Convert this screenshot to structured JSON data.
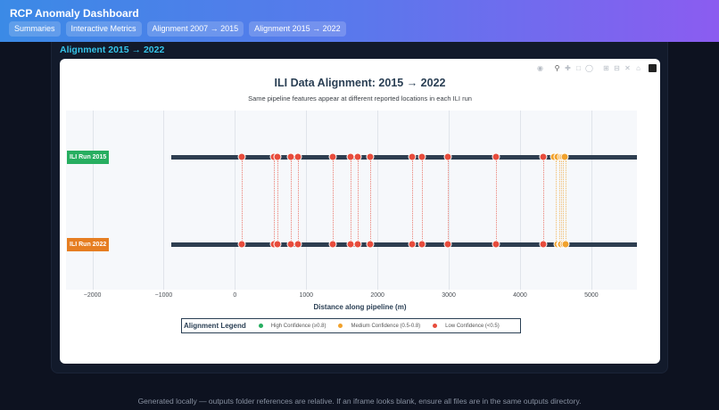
{
  "header": {
    "title": "RCP Anomaly Dashboard",
    "tabs": [
      {
        "label": "Summaries"
      },
      {
        "label": "Interactive Metrics"
      },
      {
        "label": "Alignment 2007 → 2015"
      },
      {
        "label": "Alignment 2015 → 2022"
      }
    ]
  },
  "section": {
    "title": "Alignment 2015 → 2022"
  },
  "modebar": {
    "icons": [
      "camera-icon",
      "zoom-icon",
      "pan-icon",
      "box-select-icon",
      "lasso-icon",
      "zoom-in-icon",
      "zoom-out-icon",
      "autoscale-icon",
      "reset-axes-icon",
      "plotly-logo-icon"
    ]
  },
  "chart_data": {
    "type": "scatter",
    "title": "ILI Data Alignment: 2015 → 2022",
    "subtitle": "Same pipeline features appear at different reported locations in each ILI run",
    "xlabel": "Distance along pipeline (m)",
    "ylabel": "",
    "xlim": [
      -2370,
      5640
    ],
    "x_ticks": [
      -2000,
      -1000,
      0,
      1000,
      2000,
      3000,
      4000,
      5000
    ],
    "x_tick_labels": [
      "−2000",
      "−1000",
      "0",
      "1000",
      "2000",
      "3000",
      "4000",
      "5000"
    ],
    "grid": true,
    "pipeline_extent": [
      -890,
      5640
    ],
    "runs": [
      {
        "name": "ILI Run 2015",
        "color": "#27ae60"
      },
      {
        "name": "ILI Run 2022",
        "color": "#e67e22"
      }
    ],
    "series": [
      {
        "name": "Low Confidence (<0.5)",
        "color": "#e74c3c",
        "x_2015": [
          100,
          540,
          600,
          790,
          890,
          1375,
          1625,
          1725,
          1900,
          2490,
          2625,
          2990,
          3660,
          4325
        ],
        "x_2022": [
          100,
          540,
          600,
          790,
          890,
          1375,
          1625,
          1725,
          1900,
          2490,
          2625,
          2990,
          3660,
          4325
        ]
      },
      {
        "name": "Medium Confidence (0.5-0.8)",
        "color": "#f1a22d",
        "x_2015": [
          4475,
          4530,
          4570,
          4600,
          4630
        ],
        "x_2022": [
          4520,
          4560,
          4580,
          4610,
          4640
        ]
      },
      {
        "name": "High Confidence (≥0.8)",
        "color": "#27ae60",
        "x_2015": [],
        "x_2022": []
      }
    ],
    "legend": {
      "title": "Alignment Legend",
      "position": "bottom",
      "entries": [
        {
          "label": "High Confidence (≥0.8)",
          "color": "#27ae60"
        },
        {
          "label": "Medium Confidence (0.5-0.8)",
          "color": "#f1a22d"
        },
        {
          "label": "Low Confidence (<0.5)",
          "color": "#e74c3c"
        }
      ]
    }
  },
  "footer": {
    "text": "Generated locally — outputs folder references are relative. If an iframe looks blank, ensure all files are in the same outputs directory."
  }
}
